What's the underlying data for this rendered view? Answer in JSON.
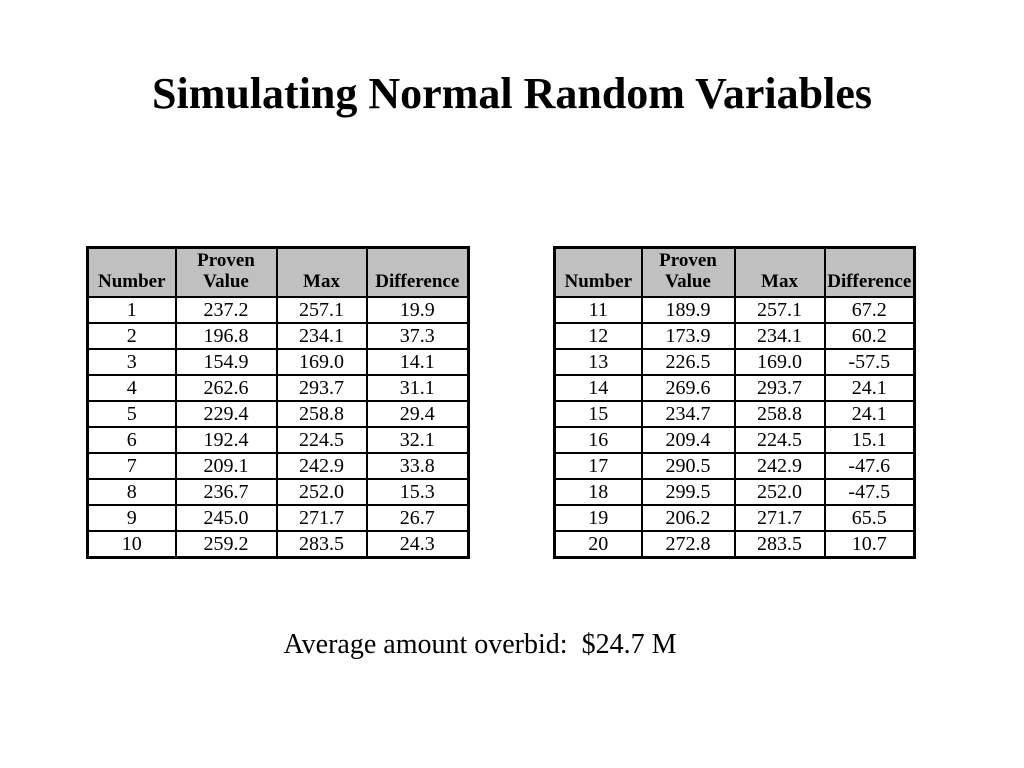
{
  "title": "Simulating Normal Random Variables",
  "caption": "Average amount overbid:  $24.7 M",
  "colors": {
    "page_bg": "#ffffff",
    "header_bg": "#c0c0c0",
    "table_border": "#000000",
    "text": "#000000"
  },
  "tables": [
    {
      "name": "rows-1-10",
      "headers": [
        "Number",
        "Proven Value",
        "Max",
        "Difference"
      ],
      "rows": [
        [
          "1",
          "237.2",
          "257.1",
          "19.9"
        ],
        [
          "2",
          "196.8",
          "234.1",
          "37.3"
        ],
        [
          "3",
          "154.9",
          "169.0",
          "14.1"
        ],
        [
          "4",
          "262.6",
          "293.7",
          "31.1"
        ],
        [
          "5",
          "229.4",
          "258.8",
          "29.4"
        ],
        [
          "6",
          "192.4",
          "224.5",
          "32.1"
        ],
        [
          "7",
          "209.1",
          "242.9",
          "33.8"
        ],
        [
          "8",
          "236.7",
          "252.0",
          "15.3"
        ],
        [
          "9",
          "245.0",
          "271.7",
          "26.7"
        ],
        [
          "10",
          "259.2",
          "283.5",
          "24.3"
        ]
      ]
    },
    {
      "name": "rows-11-20",
      "headers": [
        "Number",
        "Proven Value",
        "Max",
        "Difference"
      ],
      "rows": [
        [
          "11",
          "189.9",
          "257.1",
          "67.2"
        ],
        [
          "12",
          "173.9",
          "234.1",
          "60.2"
        ],
        [
          "13",
          "226.5",
          "169.0",
          "-57.5"
        ],
        [
          "14",
          "269.6",
          "293.7",
          "24.1"
        ],
        [
          "15",
          "234.7",
          "258.8",
          "24.1"
        ],
        [
          "16",
          "209.4",
          "224.5",
          "15.1"
        ],
        [
          "17",
          "290.5",
          "242.9",
          "-47.6"
        ],
        [
          "18",
          "299.5",
          "252.0",
          "-47.5"
        ],
        [
          "19",
          "206.2",
          "271.7",
          "65.5"
        ],
        [
          "20",
          "272.8",
          "283.5",
          "10.7"
        ]
      ]
    }
  ]
}
